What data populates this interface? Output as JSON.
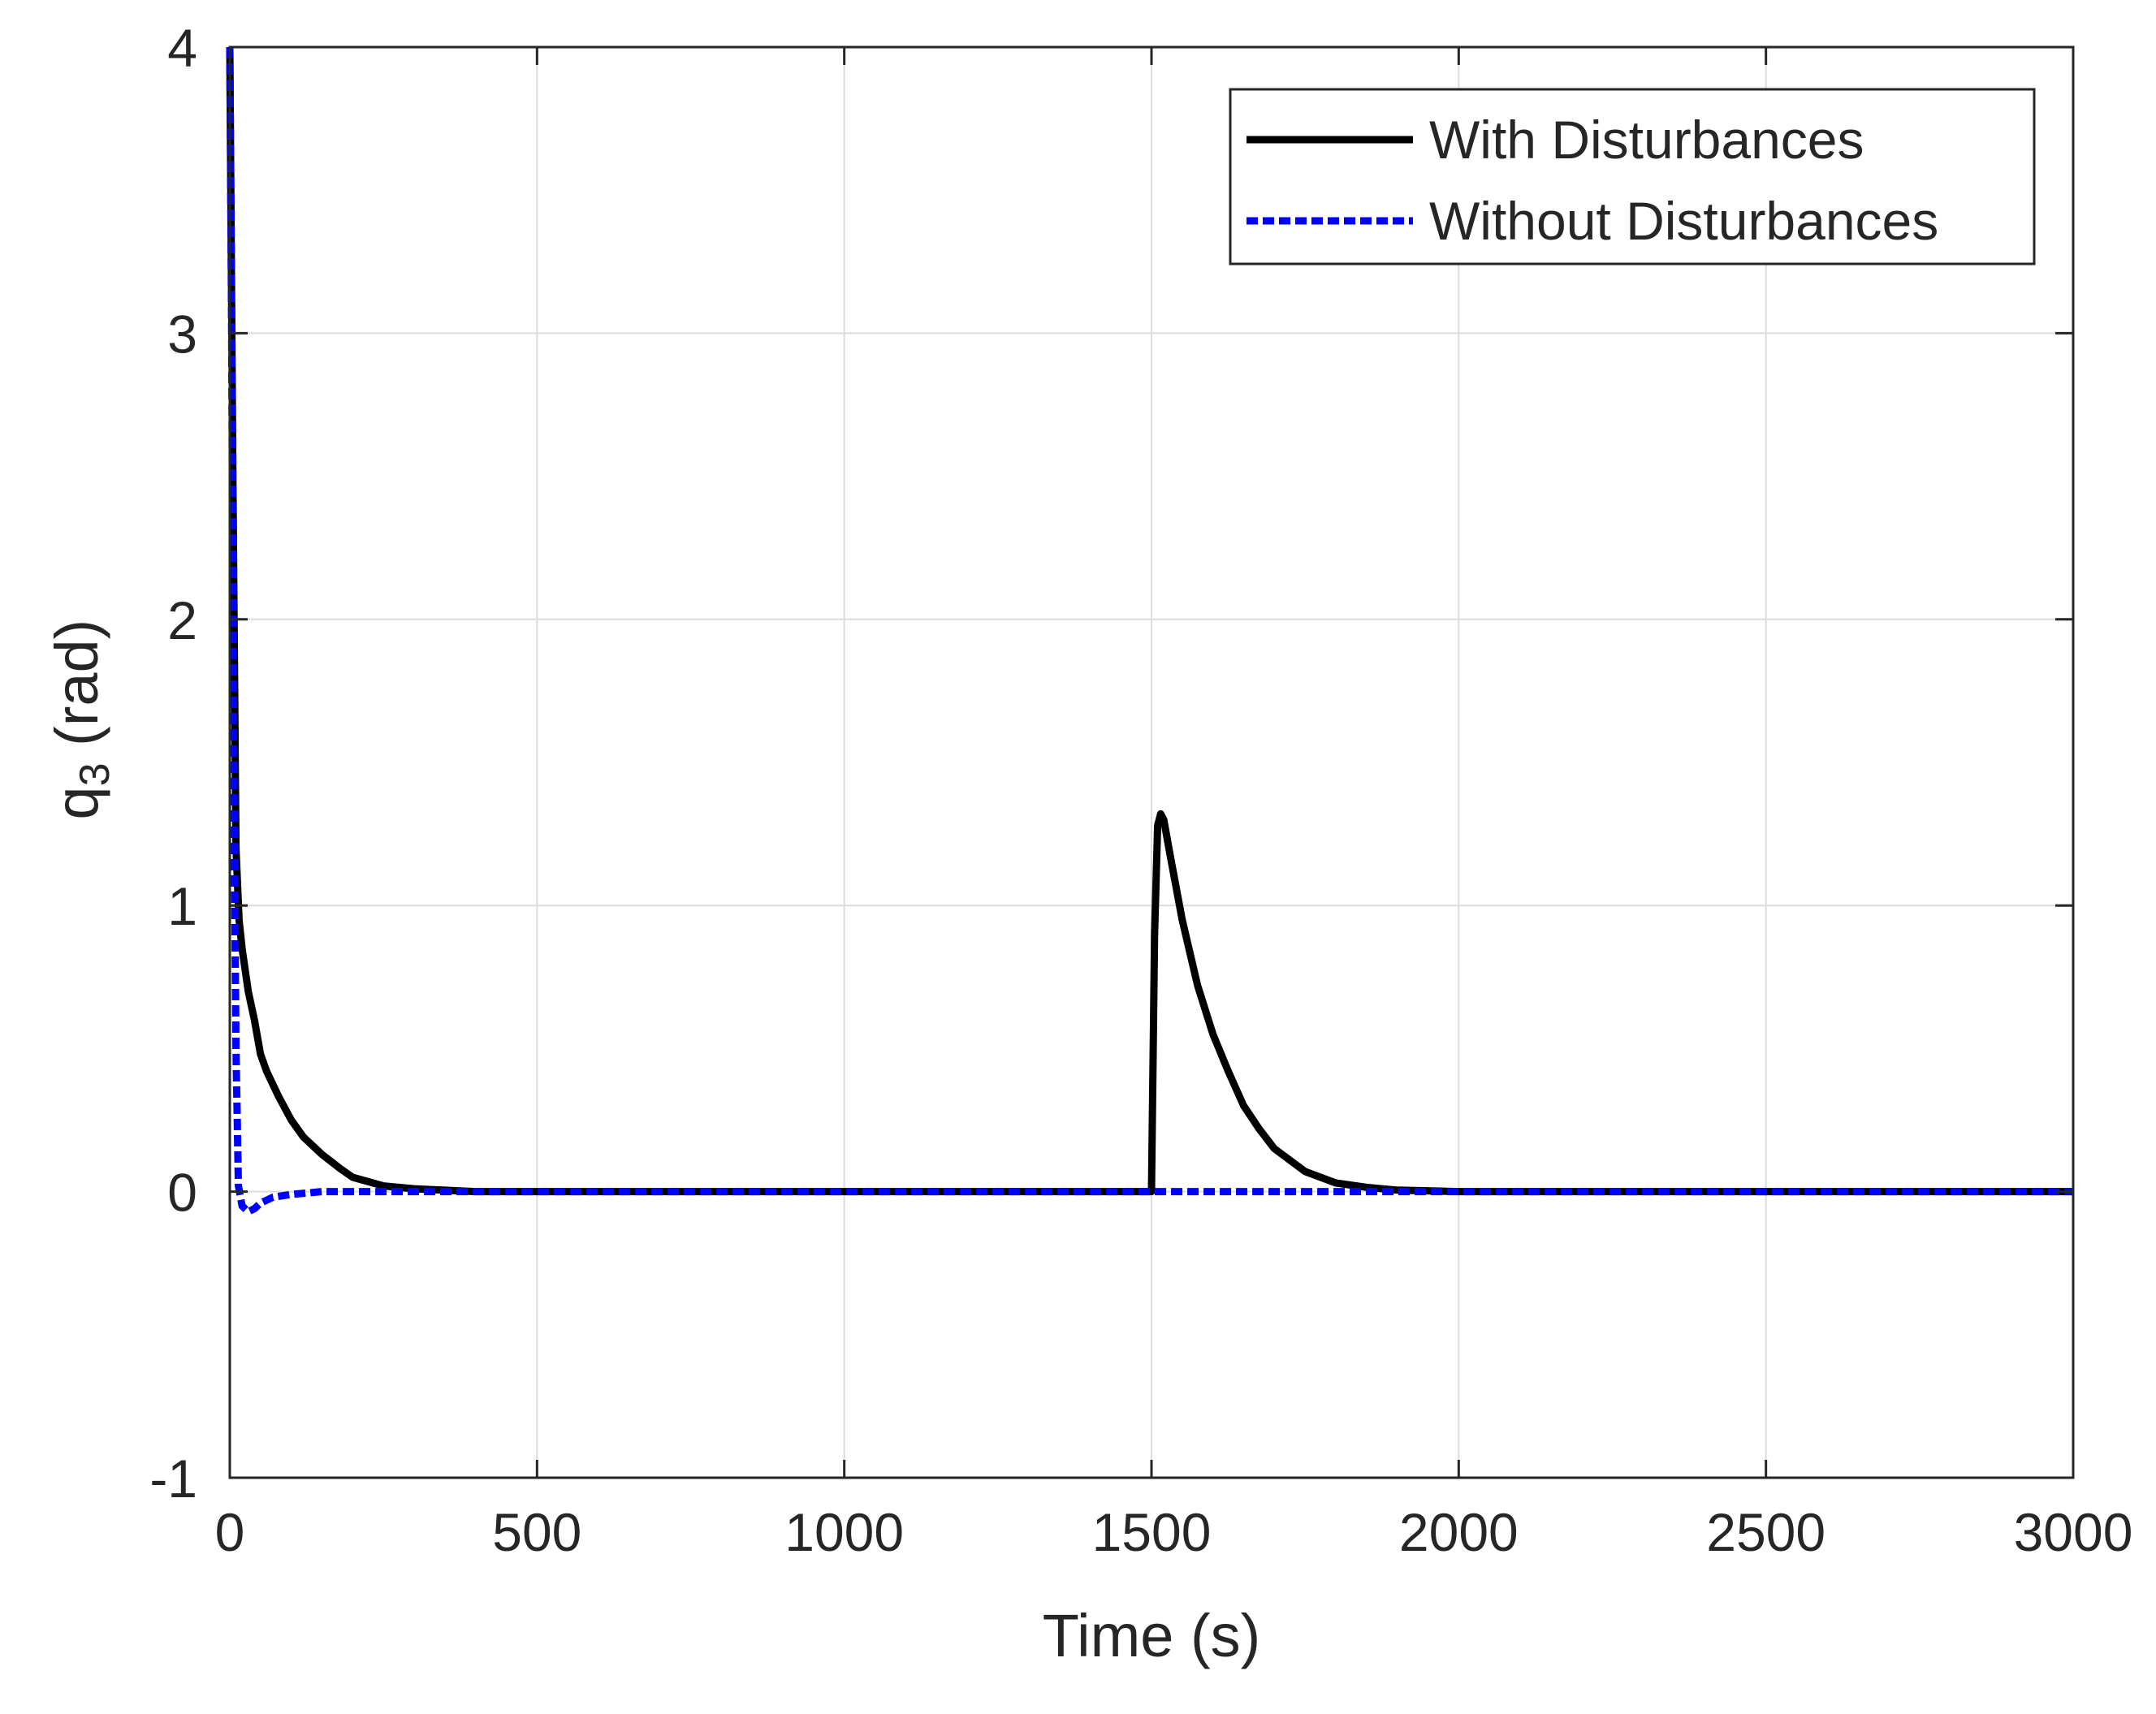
{
  "chart_data": {
    "type": "line",
    "xlabel": "Time (s)",
    "ylabel": {
      "base": "q",
      "sub": "3",
      "unit": " (rad)"
    },
    "xlim": [
      0,
      3000
    ],
    "ylim": [
      -1,
      4
    ],
    "xticks": [
      0,
      500,
      1000,
      1500,
      2000,
      2500,
      3000
    ],
    "xtick_labels": [
      "0",
      "500",
      "1000",
      "1500",
      "2000",
      "2500",
      "3000"
    ],
    "yticks": [
      -1,
      0,
      1,
      2,
      3,
      4
    ],
    "ytick_labels": [
      "-1",
      "0",
      "1",
      "2",
      "3",
      "4"
    ],
    "grid": true,
    "legend_position": "top-right",
    "series": [
      {
        "name": "With Disturbances",
        "color": "#000000",
        "style": "solid",
        "x": [
          0,
          5,
          10,
          15,
          20,
          30,
          40,
          50,
          60,
          80,
          100,
          120,
          150,
          180,
          200,
          250,
          300,
          400,
          500,
          1000,
          1499,
          1500,
          1505,
          1510,
          1515,
          1520,
          1530,
          1550,
          1575,
          1600,
          1625,
          1650,
          1675,
          1700,
          1750,
          1800,
          1850,
          1900,
          2000,
          2500,
          3000
        ],
        "y": [
          4.0,
          2.5,
          1.2,
          0.95,
          0.85,
          0.7,
          0.6,
          0.48,
          0.42,
          0.33,
          0.25,
          0.19,
          0.13,
          0.08,
          0.05,
          0.02,
          0.01,
          0.0,
          0.0,
          0.0,
          0.0,
          0.0,
          0.9,
          1.28,
          1.32,
          1.3,
          1.18,
          0.95,
          0.72,
          0.55,
          0.42,
          0.3,
          0.22,
          0.15,
          0.07,
          0.03,
          0.015,
          0.005,
          0.0,
          0.0,
          0.0
        ]
      },
      {
        "name": "Without Disturbances",
        "color": "#0000ff",
        "style": "dashed",
        "x": [
          0,
          3,
          6,
          10,
          14,
          20,
          30,
          40,
          50,
          70,
          100,
          150,
          200,
          300,
          500,
          1000,
          1500,
          2000,
          2500,
          3000
        ],
        "y": [
          4.0,
          3.0,
          1.6,
          0.5,
          0.02,
          -0.05,
          -0.07,
          -0.06,
          -0.04,
          -0.02,
          -0.01,
          0.0,
          0.0,
          0.0,
          0.0,
          0.0,
          0.0,
          0.0,
          0.0,
          0.0
        ]
      }
    ]
  }
}
